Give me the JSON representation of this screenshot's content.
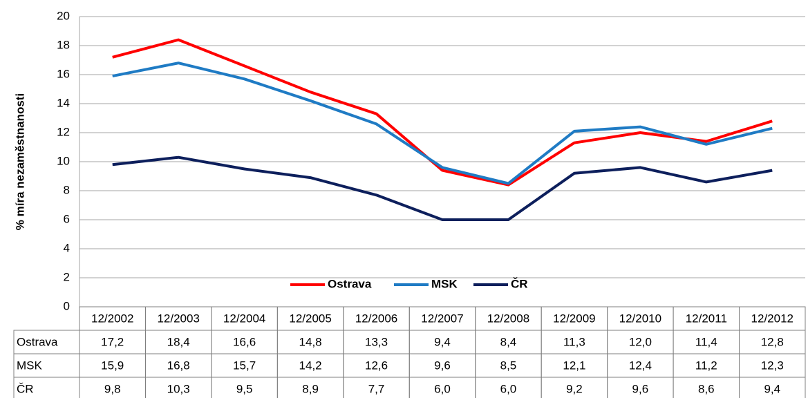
{
  "chart_data": {
    "type": "line",
    "y_label": "% míra nezaměstnanosti",
    "categories": [
      "12/2002",
      "12/2003",
      "12/2004",
      "12/2005",
      "12/2006",
      "12/2007",
      "12/2008",
      "12/2009",
      "12/2010",
      "12/2011",
      "12/2012"
    ],
    "series": [
      {
        "name": "Ostrava",
        "color": "#ff0000",
        "values": [
          17.2,
          18.4,
          16.6,
          14.8,
          13.3,
          9.4,
          8.4,
          11.3,
          12.0,
          11.4,
          12.8
        ],
        "value_labels": [
          "17,2",
          "18,4",
          "16,6",
          "14,8",
          "13,3",
          "9,4",
          "8,4",
          "11,3",
          "12,0",
          "11,4",
          "12,8"
        ]
      },
      {
        "name": "MSK",
        "color": "#1f7bc4",
        "values": [
          15.9,
          16.8,
          15.7,
          14.2,
          12.6,
          9.6,
          8.5,
          12.1,
          12.4,
          11.2,
          12.3
        ],
        "value_labels": [
          "15,9",
          "16,8",
          "15,7",
          "14,2",
          "12,6",
          "9,6",
          "8,5",
          "12,1",
          "12,4",
          "11,2",
          "12,3"
        ]
      },
      {
        "name": "ČR",
        "color": "#0d1f5c",
        "values": [
          9.8,
          10.3,
          9.5,
          8.9,
          7.7,
          6.0,
          6.0,
          9.2,
          9.6,
          8.6,
          9.4
        ],
        "value_labels": [
          "9,8",
          "10,3",
          "9,5",
          "8,9",
          "7,7",
          "6,0",
          "6,0",
          "9,2",
          "9,6",
          "8,6",
          "9,4"
        ]
      }
    ],
    "ylim": [
      0,
      20
    ],
    "yticks": [
      0,
      2,
      4,
      6,
      8,
      10,
      12,
      14,
      16,
      18,
      20
    ],
    "grid": true,
    "legend": "bottom"
  }
}
